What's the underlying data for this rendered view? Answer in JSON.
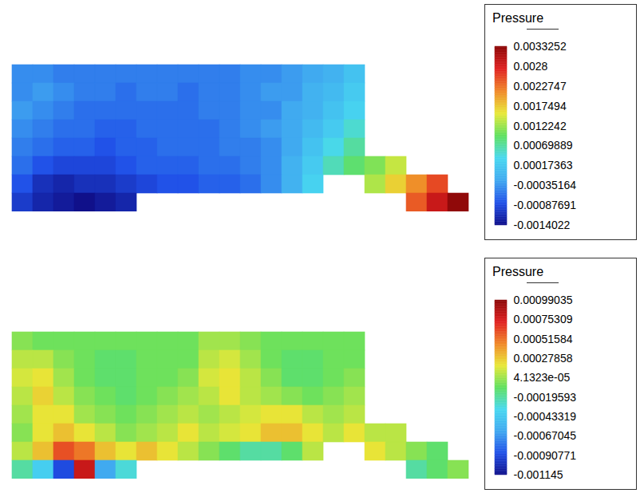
{
  "chart_data": [
    {
      "type": "heatmap",
      "tick_labels": false,
      "cells": [
        [
          -0.0004,
          -0.0004,
          -0.0005,
          -0.0005,
          -0.0005,
          -0.0005,
          -0.0005,
          -0.0005,
          -0.0005,
          -0.0005,
          -0.0005,
          -0.0004,
          -0.0004,
          -0.0003,
          -0.0002,
          -0.0001,
          0.0001,
          null,
          null,
          null,
          null,
          null
        ],
        [
          -0.0004,
          -0.0003,
          -0.0004,
          -0.0005,
          -0.0005,
          -0.0006,
          -0.0005,
          -0.0005,
          -0.0006,
          -0.0005,
          -0.0005,
          -0.0004,
          -0.0003,
          -0.0003,
          -0.0001,
          0.0,
          0.0002,
          null,
          null,
          null,
          null,
          null
        ],
        [
          -0.0003,
          -0.0004,
          -0.0005,
          -0.0006,
          -0.0006,
          -0.0006,
          -0.0006,
          -0.0006,
          -0.0006,
          -0.0005,
          -0.0005,
          -0.0004,
          -0.0004,
          -0.0002,
          -0.0001,
          0.0001,
          0.0003,
          null,
          null,
          null,
          null,
          null
        ],
        [
          -0.0004,
          -0.0005,
          -0.0006,
          -0.0006,
          -0.0007,
          -0.0007,
          -0.0006,
          -0.0006,
          -0.0006,
          -0.0006,
          -0.0005,
          -0.0004,
          -0.0003,
          -0.0002,
          0.0,
          0.0002,
          0.0005,
          null,
          null,
          null,
          null,
          null
        ],
        [
          -0.0005,
          -0.0006,
          -0.0007,
          -0.0007,
          -0.0008,
          -0.0007,
          -0.0007,
          -0.0006,
          -0.0006,
          -0.0006,
          -0.0005,
          -0.0005,
          -0.0004,
          -0.0002,
          0.0001,
          0.0004,
          0.0007,
          null,
          null,
          null,
          null,
          null
        ],
        [
          -0.0006,
          -0.0008,
          -0.0009,
          -0.0009,
          -0.0009,
          -0.0008,
          -0.0007,
          -0.0007,
          -0.0007,
          -0.0006,
          -0.0006,
          -0.0005,
          -0.0004,
          -0.0001,
          0.0002,
          0.0006,
          0.0009,
          0.0011,
          0.0014,
          null,
          null,
          null
        ],
        [
          -0.0008,
          -0.0011,
          -0.0012,
          -0.0011,
          -0.0011,
          -0.001,
          -0.0009,
          -0.0008,
          -0.0008,
          -0.0007,
          -0.0007,
          -0.0006,
          -0.0004,
          -0.0001,
          0.0003,
          null,
          null,
          0.0013,
          0.0017,
          0.0021,
          0.0025,
          null
        ],
        [
          -0.001,
          -0.0012,
          -0.0013,
          -0.0014,
          -0.0013,
          -0.0012,
          null,
          null,
          null,
          null,
          null,
          null,
          null,
          null,
          null,
          null,
          null,
          null,
          null,
          0.0024,
          0.0029,
          0.0033
        ]
      ],
      "colorbar": {
        "label": "Pressure",
        "range": [
          -0.0014022,
          0.0033252
        ],
        "ticks": [
          0.0033252,
          0.0028,
          0.0022747,
          0.0017494,
          0.0012242,
          0.00069889,
          0.00017363,
          -0.00035164,
          -0.00087691,
          -0.0014022
        ]
      }
    },
    {
      "type": "heatmap",
      "tick_labels": false,
      "cells": [
        [
          0.0,
          -5e-05,
          -5e-05,
          -5e-05,
          -5e-05,
          -5e-05,
          -5e-05,
          -5e-05,
          -5e-05,
          5e-05,
          5e-05,
          0.0,
          -5e-05,
          -5e-05,
          -5e-05,
          -5e-05,
          -5e-05,
          null,
          null,
          null,
          null,
          null
        ],
        [
          0.0001,
          0.0001,
          0.0,
          -5e-05,
          -0.0001,
          -0.0001,
          -5e-05,
          -5e-05,
          -5e-05,
          0.0001,
          0.00015,
          5e-05,
          -5e-05,
          -0.0001,
          -0.0001,
          -5e-05,
          -5e-05,
          null,
          null,
          null,
          null,
          null
        ],
        [
          0.00015,
          0.0002,
          5e-05,
          -5e-05,
          -0.0001,
          -0.0001,
          -5e-05,
          -5e-05,
          0.0,
          0.00015,
          0.0002,
          0.0001,
          0.0,
          -0.0001,
          -0.0001,
          -5e-05,
          0.0,
          null,
          null,
          null,
          null,
          null
        ],
        [
          0.0001,
          0.00025,
          0.0001,
          0.0,
          -5e-05,
          -0.0001,
          -5e-05,
          0.0,
          5e-05,
          0.0001,
          0.0002,
          0.0001,
          5e-05,
          0.0,
          -5e-05,
          0.0,
          5e-05,
          null,
          null,
          null,
          null,
          null
        ],
        [
          5e-05,
          0.0002,
          0.0002,
          5e-05,
          0.0,
          -5e-05,
          0.0,
          5e-05,
          0.0001,
          5e-05,
          0.0001,
          0.00015,
          0.0002,
          0.0002,
          0.0001,
          5e-05,
          0.0001,
          null,
          null,
          null,
          null,
          null
        ],
        [
          0.0,
          0.0002,
          0.0003,
          0.0002,
          0.0001,
          0.0,
          5e-05,
          0.0001,
          0.0002,
          0.0001,
          0.00015,
          0.0002,
          0.0003,
          0.0003,
          0.0002,
          0.0001,
          0.0002,
          0.0001,
          0.0001,
          null,
          null,
          null
        ],
        [
          0.0001,
          0.0003,
          0.0006,
          0.0005,
          0.0003,
          0.0002,
          0.0003,
          0.0002,
          0.0001,
          0.0,
          -0.0001,
          -0.0002,
          -0.0002,
          -0.0001,
          0.0001,
          null,
          null,
          0.0002,
          0.0001,
          0.0,
          -0.0001,
          null
        ],
        [
          -0.0002,
          -0.0004,
          -0.0009,
          0.0008,
          -0.0006,
          -0.0003,
          null,
          null,
          null,
          null,
          null,
          null,
          null,
          null,
          null,
          null,
          null,
          null,
          null,
          -0.0002,
          -0.0001,
          0.0
        ]
      ],
      "colorbar": {
        "label": "Pressure",
        "range": [
          -0.001145,
          0.00099035
        ],
        "ticks": [
          0.00099035,
          0.00075309,
          0.00051584,
          0.00027858,
          {
            "value": 4.1323e-05,
            "label": "4.1323e-05"
          },
          -0.00019593,
          -0.00043319,
          -0.00067045,
          -0.00090771,
          -0.001145
        ]
      }
    }
  ]
}
